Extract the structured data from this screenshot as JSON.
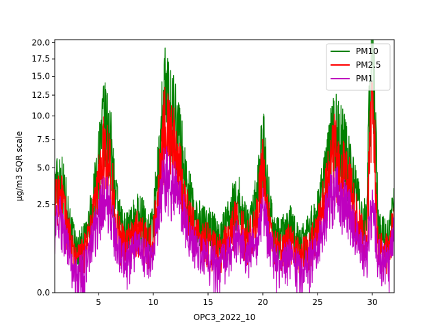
{
  "chart_data": {
    "type": "line",
    "title": "",
    "xlabel": "OPC3_2022_10",
    "ylabel": "µg/m3 SQR scale",
    "y_scale": "sqrt",
    "xlim": [
      1,
      32
    ],
    "ylim": [
      0,
      20.5
    ],
    "x_ticks": [
      5,
      10,
      15,
      20,
      25,
      30
    ],
    "x_tick_labels": [
      "5",
      "10",
      "15",
      "20",
      "25",
      "30"
    ],
    "y_ticks": [
      0.0,
      2.5,
      5.0,
      7.5,
      10.0,
      12.5,
      15.0,
      17.5,
      20.0
    ],
    "y_tick_labels": [
      "0.0",
      "2.5",
      "5.0",
      "7.5",
      "10.0",
      "12.5",
      "15.0",
      "17.5",
      "20.0"
    ],
    "grid": false,
    "legend_position": "top-right",
    "series": [
      {
        "name": "PM10",
        "color": "#008000",
        "x": [
          1.0,
          1.5,
          2.0,
          2.5,
          3.0,
          3.5,
          4.0,
          4.5,
          5.0,
          5.5,
          6.0,
          6.5,
          7.0,
          7.5,
          8.0,
          8.5,
          9.0,
          9.5,
          10.0,
          10.5,
          11.0,
          11.5,
          12.0,
          12.5,
          13.0,
          13.5,
          14.0,
          14.5,
          15.0,
          15.5,
          16.0,
          16.5,
          17.0,
          17.5,
          18.0,
          18.5,
          19.0,
          19.5,
          20.0,
          20.5,
          21.0,
          21.5,
          22.0,
          22.5,
          23.0,
          23.5,
          24.0,
          24.5,
          25.0,
          25.5,
          26.0,
          26.5,
          27.0,
          27.5,
          28.0,
          28.5,
          29.0,
          29.5,
          30.0,
          30.5,
          31.0,
          31.5,
          32.0
        ],
        "values": [
          3.5,
          4.5,
          2.8,
          1.2,
          0.6,
          0.8,
          1.2,
          2.5,
          5.5,
          9.5,
          8.0,
          3.0,
          1.5,
          1.2,
          1.5,
          2.0,
          1.8,
          1.2,
          1.5,
          5.0,
          13.0,
          11.0,
          10.0,
          7.0,
          4.0,
          2.5,
          1.8,
          1.5,
          1.5,
          1.2,
          1.0,
          1.3,
          1.8,
          3.0,
          2.5,
          1.5,
          2.0,
          3.0,
          7.5,
          3.0,
          1.2,
          1.0,
          1.2,
          1.5,
          1.0,
          0.8,
          1.0,
          1.5,
          2.0,
          3.5,
          6.0,
          8.5,
          7.5,
          6.5,
          5.0,
          3.0,
          2.0,
          1.5,
          20.0,
          1.5,
          1.2,
          1.0,
          2.5
        ]
      },
      {
        "name": "PM2.5",
        "color": "#ff0000",
        "x": [
          1.0,
          1.5,
          2.0,
          2.5,
          3.0,
          3.5,
          4.0,
          4.5,
          5.0,
          5.5,
          6.0,
          6.5,
          7.0,
          7.5,
          8.0,
          8.5,
          9.0,
          9.5,
          10.0,
          10.5,
          11.0,
          11.5,
          12.0,
          12.5,
          13.0,
          13.5,
          14.0,
          14.5,
          15.0,
          15.5,
          16.0,
          16.5,
          17.0,
          17.5,
          18.0,
          18.5,
          19.0,
          19.5,
          20.0,
          20.5,
          21.0,
          21.5,
          22.0,
          22.5,
          23.0,
          23.5,
          24.0,
          24.5,
          25.0,
          25.5,
          26.0,
          26.5,
          27.0,
          27.5,
          28.0,
          28.5,
          29.0,
          29.5,
          30.0,
          30.5,
          31.0,
          31.5,
          32.0
        ],
        "values": [
          2.5,
          3.2,
          1.8,
          0.7,
          0.3,
          0.5,
          0.8,
          1.8,
          4.0,
          6.5,
          5.5,
          2.0,
          0.9,
          0.8,
          1.0,
          1.3,
          1.1,
          0.8,
          1.0,
          3.5,
          9.0,
          8.0,
          7.0,
          4.5,
          2.5,
          1.5,
          1.1,
          0.9,
          0.9,
          0.7,
          0.6,
          0.8,
          1.1,
          1.8,
          1.5,
          0.9,
          1.2,
          1.8,
          5.0,
          1.8,
          0.7,
          0.6,
          0.7,
          0.9,
          0.6,
          0.5,
          0.6,
          0.9,
          1.2,
          2.5,
          4.5,
          6.5,
          5.5,
          4.5,
          3.5,
          2.0,
          1.2,
          0.9,
          11.0,
          0.9,
          0.7,
          0.6,
          1.8
        ]
      },
      {
        "name": "PM1",
        "color": "#bf00bf",
        "x": [
          1.0,
          1.5,
          2.0,
          2.5,
          3.0,
          3.5,
          4.0,
          4.5,
          5.0,
          5.5,
          6.0,
          6.5,
          7.0,
          7.5,
          8.0,
          8.5,
          9.0,
          9.5,
          10.0,
          10.5,
          11.0,
          11.5,
          12.0,
          12.5,
          13.0,
          13.5,
          14.0,
          14.5,
          15.0,
          15.5,
          16.0,
          16.5,
          17.0,
          17.5,
          18.0,
          18.5,
          19.0,
          19.5,
          20.0,
          20.5,
          21.0,
          21.5,
          22.0,
          22.5,
          23.0,
          23.5,
          24.0,
          24.5,
          25.0,
          25.5,
          26.0,
          26.5,
          27.0,
          27.5,
          28.0,
          28.5,
          29.0,
          29.5,
          30.0,
          30.5,
          31.0,
          31.5,
          32.0
        ],
        "values": [
          1.5,
          1.8,
          1.0,
          0.3,
          0.1,
          0.2,
          0.4,
          1.0,
          1.8,
          3.0,
          2.5,
          1.0,
          0.5,
          0.4,
          0.5,
          0.7,
          0.6,
          0.4,
          0.5,
          2.0,
          4.5,
          4.0,
          3.5,
          2.5,
          1.5,
          0.9,
          0.6,
          0.5,
          0.5,
          0.4,
          0.3,
          0.4,
          0.6,
          1.0,
          0.9,
          0.5,
          0.7,
          1.0,
          2.5,
          1.0,
          0.4,
          0.3,
          0.4,
          0.5,
          0.3,
          0.2,
          0.3,
          0.5,
          0.7,
          1.5,
          2.5,
          3.5,
          3.0,
          2.5,
          2.0,
          1.2,
          0.7,
          0.5,
          2.5,
          0.5,
          0.4,
          0.3,
          1.2
        ]
      }
    ]
  }
}
